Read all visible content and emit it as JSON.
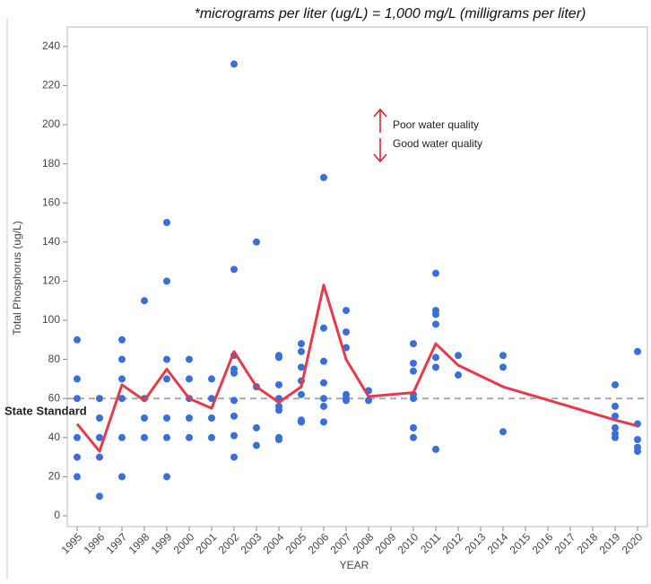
{
  "chart_data": {
    "type": "scatter",
    "note": "*micrograms per liter (ug/L) = 1,000 mg/L (milligrams per liter)",
    "xlabel": "YEAR",
    "ylabel": "Total Phosphorus (ug/L)",
    "annotations": [
      "Poor water quality",
      "Good water quality"
    ],
    "reference_line": {
      "label": "State Standard",
      "value": 60,
      "color": "#aaaaaa"
    },
    "points": {
      "color": "#3a6fd9",
      "x": [
        1995,
        1995,
        1995,
        1995,
        1995,
        1995,
        1996,
        1996,
        1996,
        1996,
        1996,
        1997,
        1997,
        1997,
        1997,
        1997,
        1997,
        1998,
        1998,
        1998,
        1998,
        1999,
        1999,
        1999,
        1999,
        1999,
        1999,
        1999,
        2000,
        2000,
        2000,
        2000,
        2000,
        2001,
        2001,
        2001,
        2001,
        2002,
        2002,
        2002,
        2002,
        2002,
        2002,
        2002,
        2002,
        2002,
        2003,
        2003,
        2003,
        2003,
        2004,
        2004,
        2004,
        2004,
        2004,
        2004,
        2004,
        2004,
        2005,
        2005,
        2005,
        2005,
        2005,
        2005,
        2005,
        2006,
        2006,
        2006,
        2006,
        2006,
        2006,
        2006,
        2007,
        2007,
        2007,
        2007,
        2007,
        2007,
        2008,
        2008,
        2010,
        2010,
        2010,
        2010,
        2010,
        2010,
        2010,
        2011,
        2011,
        2011,
        2011,
        2011,
        2011,
        2011,
        2012,
        2012,
        2014,
        2014,
        2014,
        2019,
        2019,
        2019,
        2019,
        2019,
        2019,
        2020,
        2020,
        2020,
        2020,
        2020
      ],
      "y": [
        90,
        70,
        60,
        40,
        30,
        20,
        60,
        50,
        40,
        30,
        10,
        90,
        80,
        70,
        60,
        40,
        20,
        110,
        60,
        50,
        40,
        150,
        120,
        80,
        70,
        50,
        40,
        20,
        80,
        70,
        60,
        50,
        40,
        70,
        60,
        50,
        40,
        231,
        126,
        82,
        75,
        73,
        59,
        51,
        41,
        30,
        140,
        66,
        45,
        36,
        82,
        81,
        67,
        60,
        56,
        54,
        40,
        39,
        88,
        84,
        76,
        69,
        62,
        49,
        48,
        173,
        96,
        79,
        68,
        60,
        56,
        48,
        105,
        94,
        86,
        62,
        60,
        59,
        64,
        59,
        88,
        78,
        74,
        62,
        60,
        45,
        40,
        124,
        105,
        103,
        98,
        81,
        76,
        34,
        82,
        72,
        82,
        76,
        43,
        67,
        56,
        51,
        45,
        42,
        40,
        84,
        47,
        39,
        35,
        33
      ]
    },
    "line": {
      "color": "#e8394a",
      "x": [
        1995,
        1996,
        1997,
        1998,
        1999,
        2000,
        2001,
        2002,
        2003,
        2004,
        2005,
        2006,
        2007,
        2008,
        2010,
        2011,
        2012,
        2014,
        2019,
        2020
      ],
      "y": [
        47,
        33,
        67,
        59,
        75,
        60,
        55,
        84,
        66,
        58,
        66,
        118,
        80,
        61,
        63,
        88,
        77,
        66,
        49,
        46
      ]
    },
    "xlim": [
      1994.56,
      2020.44
    ],
    "xticks": [
      1995,
      1996,
      1997,
      1998,
      1999,
      2000,
      2001,
      2002,
      2003,
      2004,
      2005,
      2006,
      2007,
      2008,
      2009,
      2010,
      2011,
      2012,
      2013,
      2014,
      2015,
      2016,
      2017,
      2018,
      2019,
      2020
    ],
    "ylim": [
      -5.5,
      250
    ],
    "yticks": [
      0,
      20,
      40,
      60,
      80,
      100,
      120,
      140,
      160,
      180,
      200,
      220,
      240
    ],
    "grid": false
  }
}
